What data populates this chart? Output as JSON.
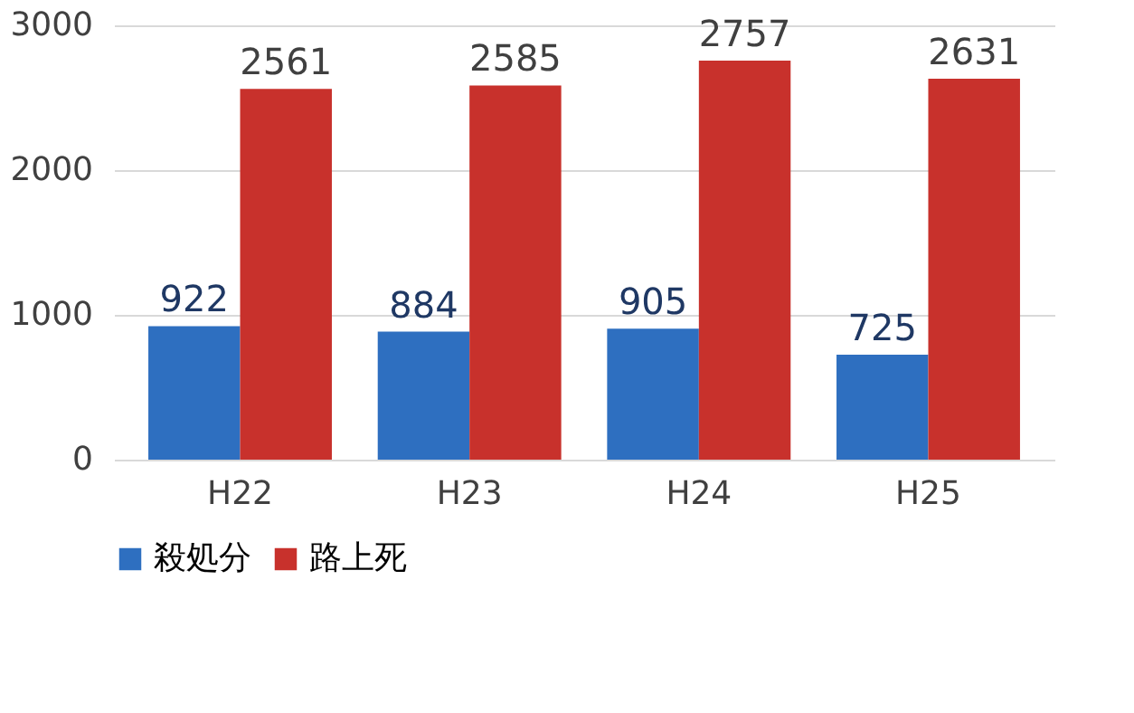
{
  "chart_data": {
    "type": "bar",
    "categories": [
      "H22",
      "H23",
      "H24",
      "H25"
    ],
    "series": [
      {
        "name": "殺処分",
        "color": "#2e6fc0",
        "values": [
          922,
          884,
          905,
          725
        ]
      },
      {
        "name": "路上死",
        "color": "#c8312c",
        "values": [
          2561,
          2585,
          2757,
          2631
        ]
      }
    ],
    "ylim": [
      0,
      3000
    ],
    "yticks": [
      0,
      1000,
      2000,
      3000
    ],
    "grid": "y",
    "legend": "bottom",
    "data_labels": true
  }
}
